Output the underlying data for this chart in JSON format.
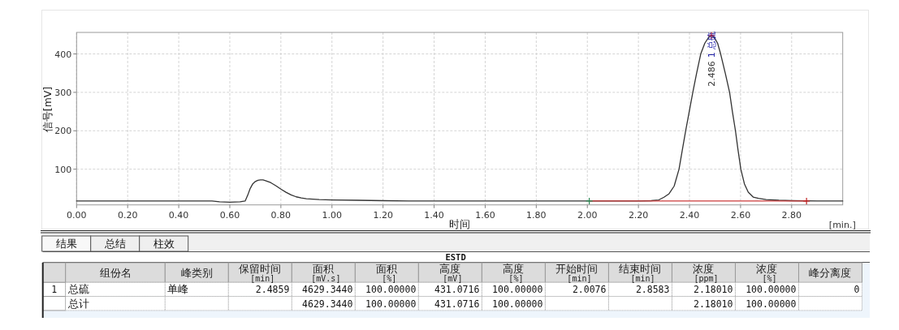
{
  "chart_data": [
    {
      "type": "line",
      "xlabel": "时间",
      "ylabel": "信号[mV]",
      "xlim": [
        0,
        3.0
      ],
      "ylim": [
        7,
        456
      ],
      "xticks": [
        {
          "value": 0,
          "label": "0.00"
        },
        {
          "value": 0.2,
          "label": "0.20"
        },
        {
          "value": 0.4,
          "label": "0.40"
        },
        {
          "value": 0.6,
          "label": "0.60"
        },
        {
          "value": 0.8,
          "label": "0.80"
        },
        {
          "value": 1.0,
          "label": "1.00"
        },
        {
          "value": 1.2,
          "label": "1.20"
        },
        {
          "value": 1.4,
          "label": "1.40"
        },
        {
          "value": 1.6,
          "label": "1.60"
        },
        {
          "value": 1.8,
          "label": "1.80"
        },
        {
          "value": 2.0,
          "label": "2.00"
        },
        {
          "value": 2.2,
          "label": "2.20"
        },
        {
          "value": 2.4,
          "label": "2.40"
        },
        {
          "value": 2.6,
          "label": "2.60"
        },
        {
          "value": 2.8,
          "label": "2.80"
        }
      ],
      "yticks": [
        100,
        200,
        300,
        400
      ],
      "grid": true,
      "annotations": [
        {
          "text": "2.486",
          "x": 2.486,
          "y": 448
        },
        {
          "text": "1 总硫",
          "x": 2.486,
          "y": 448
        },
        "[min.]"
      ],
      "series": [
        {
          "color": "#333333",
          "x": [
            0,
            0.1,
            0.2,
            0.3,
            0.4,
            0.5,
            0.53,
            0.56,
            0.6,
            0.64,
            0.66,
            0.67,
            0.68,
            0.69,
            0.7,
            0.71,
            0.72,
            0.73,
            0.74,
            0.76,
            0.78,
            0.8,
            0.82,
            0.84,
            0.86,
            0.88,
            0.9,
            0.95,
            1.0,
            1.1,
            1.2,
            1.3,
            1.5,
            1.8,
            2.0,
            2.1,
            2.2,
            2.25,
            2.28,
            2.3,
            2.32,
            2.34,
            2.359,
            2.372,
            2.385,
            2.399,
            2.413,
            2.428,
            2.444,
            2.46,
            2.475,
            2.486,
            2.497,
            2.51,
            2.522,
            2.54,
            2.557,
            2.568,
            2.58,
            2.59,
            2.601,
            2.615,
            2.63,
            2.65,
            2.67,
            2.7,
            2.75,
            2.8,
            2.9,
            3.0
          ],
          "values": [
            17,
            17,
            17,
            17,
            17,
            17,
            17,
            15,
            14,
            15,
            17,
            32,
            50,
            62,
            68,
            71,
            72,
            72,
            70,
            65,
            57,
            48,
            40,
            33,
            28,
            25,
            23,
            21,
            20,
            19,
            18,
            17,
            17,
            17,
            17,
            17,
            17,
            18,
            20,
            27,
            36,
            56,
            100,
            150,
            200,
            250,
            300,
            350,
            400,
            428,
            443,
            448,
            443,
            428,
            400,
            350,
            300,
            250,
            200,
            150,
            100,
            62,
            40,
            27,
            24,
            21,
            19,
            18,
            17,
            17
          ]
        },
        {
          "type": "line",
          "color": "#cc3a3a",
          "x": [
            2.0076,
            2.8583
          ],
          "values": [
            17,
            17
          ]
        },
        {
          "type": "scatter",
          "marker": "cross",
          "colors": [
            "#2e8b57",
            "#e02020",
            "#c02020"
          ],
          "x": [
            2.0076,
            2.486,
            2.8583
          ],
          "values": [
            17,
            448,
            17
          ]
        }
      ]
    },
    {
      "type": "other",
      "title": "ESTD",
      "annotations": [
        "结果",
        "总结",
        "柱效"
      ],
      "categories": [
        "组份名",
        "峰类别",
        "保留时间 [min]",
        "面积 [mV.s]",
        "面积 [%]",
        "高度 [mV]",
        "高度 [%]",
        "开始时间 [min]",
        "结束时间 [min]",
        "浓度 [ppm]",
        "浓度 [%]",
        "峰分离度"
      ],
      "y_categories": [
        "1",
        null
      ],
      "cell_labels": [
        [
          "总硫",
          "单峰",
          "2.4859",
          "4629.3440",
          "100.00000",
          "431.0716",
          "100.00000",
          "2.0076",
          "2.8583",
          "2.18010",
          "100.00000",
          "0"
        ],
        [
          "总计",
          null,
          null,
          "4629.3440",
          "100.00000",
          "431.0716",
          "100.00000",
          null,
          null,
          "2.18010",
          "100.00000",
          null
        ]
      ]
    }
  ]
}
